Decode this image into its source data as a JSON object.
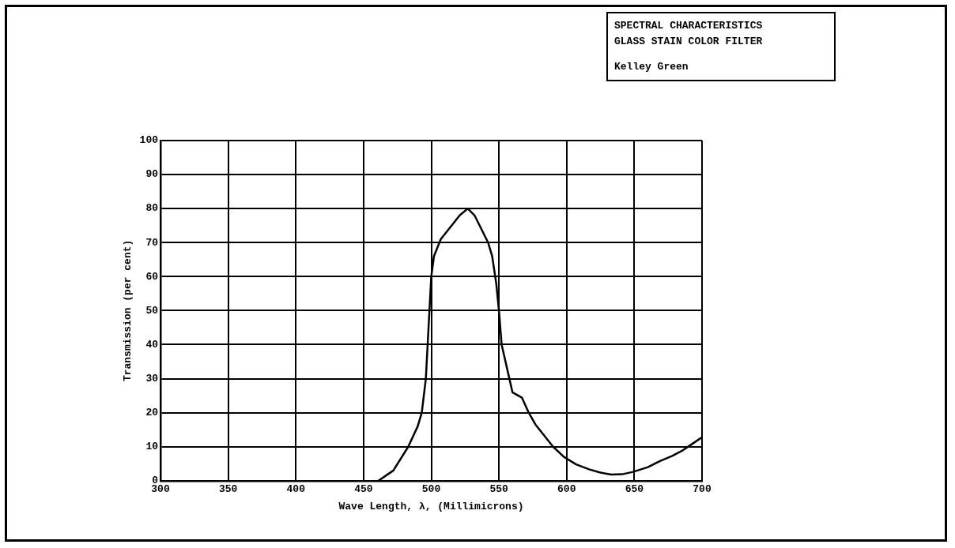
{
  "chart_data": {
    "type": "line",
    "title": "SPECTRAL CHARACTERISTICS",
    "subtitle": "GLASS STAIN COLOR FILTER",
    "annotations": [
      "Kelley Green"
    ],
    "xlabel": "Wave Length, λ, (Millimicrons)",
    "ylabel": "Transmission (per cent)",
    "x": [
      461,
      472,
      483,
      490,
      493,
      496,
      498,
      500,
      502,
      507,
      515,
      521,
      527,
      532,
      537,
      542,
      545,
      548,
      550,
      552,
      556,
      560,
      567,
      572,
      577,
      582,
      590,
      598,
      607,
      617,
      625,
      633,
      641,
      649,
      660,
      669,
      678,
      686,
      693,
      700
    ],
    "series": [
      {
        "color": "#000000",
        "values": [
          0,
          3,
          10,
          16,
          20,
          30,
          45,
          60,
          66,
          71,
          75,
          78,
          80,
          78,
          74,
          70,
          66,
          58,
          50,
          40,
          33,
          26,
          24.4,
          20,
          16.5,
          14,
          10,
          7,
          4.8,
          3.3,
          2.4,
          1.8,
          1.9,
          2.6,
          4,
          5.8,
          7.3,
          9,
          10.9,
          12.8
        ]
      }
    ],
    "xlim": [
      300,
      700
    ],
    "xticks": [
      300,
      350,
      400,
      450,
      500,
      550,
      600,
      650,
      700
    ],
    "ylim": [
      0,
      100
    ],
    "yticks": [
      0,
      10,
      20,
      30,
      40,
      50,
      60,
      70,
      80,
      90,
      100
    ],
    "grid": true,
    "legend": false,
    "marker": "none",
    "line_style": "solid"
  }
}
